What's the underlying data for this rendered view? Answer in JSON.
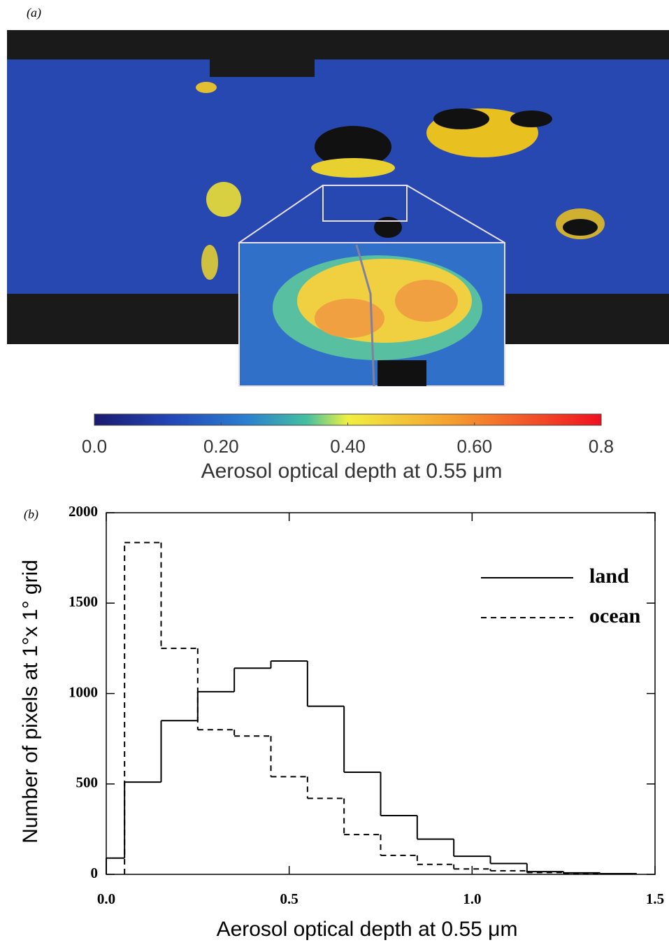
{
  "chart_data": [
    {
      "type": "map",
      "label": "(a)",
      "colorbar_title": "Aerosol  optical  depth at 0.55 μm",
      "clim": [
        0,
        0.8
      ],
      "cticks": [
        {
          "value": 0,
          "label": "0.0"
        },
        {
          "value": 0.2,
          "label": "0.20"
        },
        {
          "value": 0.4,
          "label": "0.40"
        },
        {
          "value": 0.6,
          "label": "0.60"
        },
        0.8
      ]
    },
    {
      "type": "histogram",
      "label": "(b)",
      "x_label": "Aerosol  optical  depth at 0.55 μm",
      "y_label": "Number of pixels at 1°x 1° grid",
      "bins": [
        0,
        0.05,
        0.15,
        0.25,
        0.35,
        0.45,
        0.55,
        0.65,
        0.75,
        0.85,
        0.95,
        1.05,
        1.15,
        1.25,
        1.35,
        1.45
      ],
      "series": [
        {
          "name": "land",
          "color": "#000000",
          "line_style": "solid",
          "values": [
            90,
            510,
            850,
            1010,
            1140,
            1180,
            930,
            565,
            325,
            195,
            100,
            60,
            15,
            8,
            4
          ]
        },
        {
          "name": "ocean",
          "color": "#000000",
          "line_style": "dashed",
          "values": [
            null,
            1835,
            1250,
            800,
            765,
            540,
            420,
            220,
            105,
            55,
            30,
            20,
            10,
            4,
            null
          ]
        }
      ],
      "xlim": [
        0,
        1.5
      ],
      "ylim": [
        0,
        2000
      ],
      "xticks": [
        {
          "value": 0,
          "label": "0.0"
        },
        0.5,
        {
          "value": 1,
          "label": "1.0"
        },
        1.5
      ],
      "yticks": [
        0,
        500,
        1000,
        1500,
        2000
      ],
      "legend": "upper right"
    }
  ]
}
